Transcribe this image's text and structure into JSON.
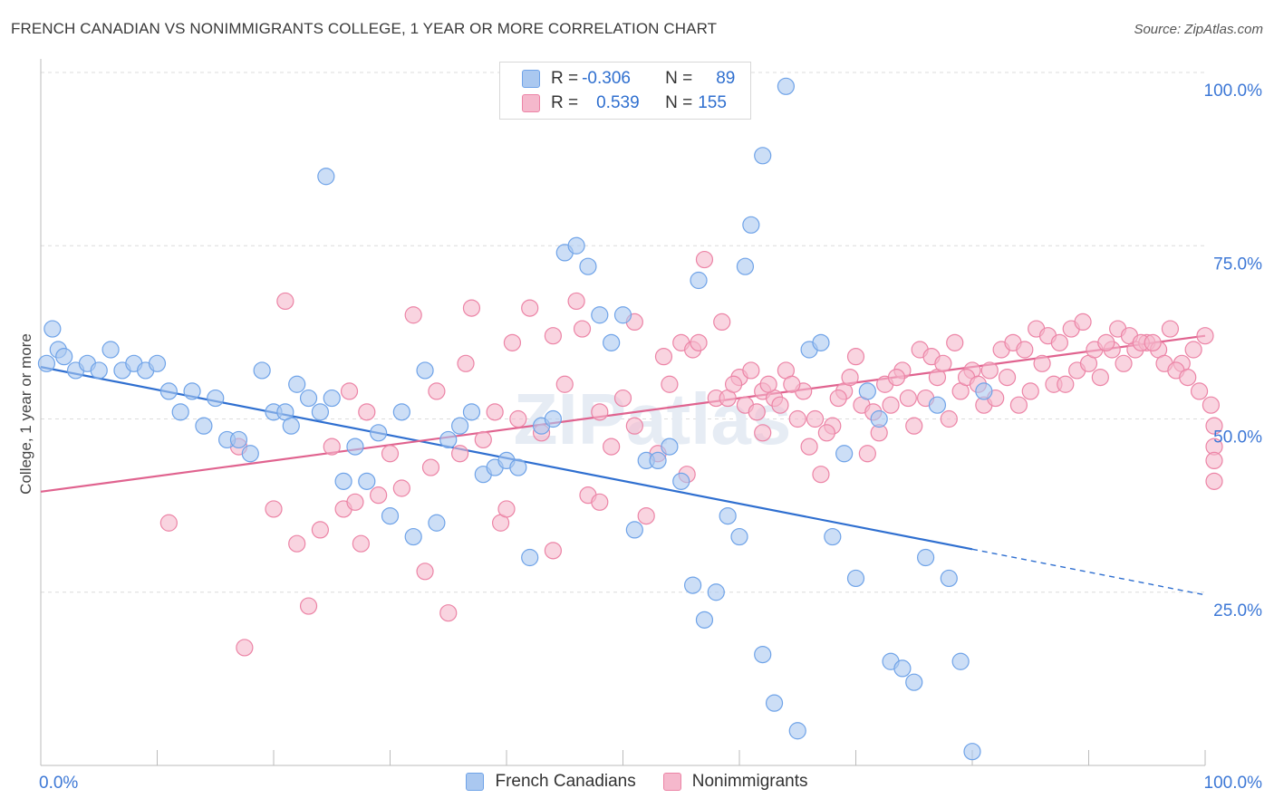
{
  "title": "FRENCH CANADIAN VS NONIMMIGRANTS COLLEGE, 1 YEAR OR MORE CORRELATION CHART",
  "source": "Source: ZipAtlas.com",
  "watermark": "ZIPatlas",
  "legend": {
    "rows": [
      {
        "r_label": "R =",
        "r_value": "-0.306",
        "n_label": "N =",
        "n_value": "89",
        "color": "#aac8f0"
      },
      {
        "r_label": "R =",
        "r_value": "0.539",
        "n_label": "N =",
        "n_value": "155",
        "color": "#f5b8cc"
      }
    ]
  },
  "bottom_legend": [
    {
      "label": "French Canadians",
      "color": "#aac8f0"
    },
    {
      "label": "Nonimmigrants",
      "color": "#f5b8cc"
    }
  ],
  "chart_data": {
    "type": "scatter",
    "title": "FRENCH CANADIAN VS NONIMMIGRANTS COLLEGE, 1 YEAR OR MORE CORRELATION CHART",
    "xlabel": "",
    "ylabel": "College, 1 year or more",
    "xlim": [
      0,
      100
    ],
    "ylim": [
      0,
      100
    ],
    "x_tick_labels": [
      "0.0%",
      "100.0%"
    ],
    "y_tick_labels": [
      "25.0%",
      "50.0%",
      "75.0%",
      "100.0%"
    ],
    "y_ticks": [
      25,
      50,
      75,
      100
    ],
    "grid": true,
    "legend_position": "top-center",
    "series": [
      {
        "name": "French Canadians",
        "color": "#6fa3e8",
        "fill": "#aac8f0",
        "trend": {
          "x0": 0,
          "y0": 57.5,
          "x1": 80,
          "y1": 31.2,
          "dashed_to_x": 100,
          "dashed_to_y": 24.6,
          "color": "#2f6fd0"
        },
        "points": [
          [
            1,
            63
          ],
          [
            0.5,
            58
          ],
          [
            1.5,
            60
          ],
          [
            2,
            59
          ],
          [
            3,
            57
          ],
          [
            4,
            58
          ],
          [
            5,
            57
          ],
          [
            6,
            60
          ],
          [
            7,
            57
          ],
          [
            8,
            58
          ],
          [
            9,
            57
          ],
          [
            10,
            58
          ],
          [
            11,
            54
          ],
          [
            12,
            51
          ],
          [
            13,
            54
          ],
          [
            14,
            49
          ],
          [
            15,
            53
          ],
          [
            16,
            47
          ],
          [
            17,
            47
          ],
          [
            18,
            45
          ],
          [
            19,
            57
          ],
          [
            20,
            51
          ],
          [
            21,
            51
          ],
          [
            21.5,
            49
          ],
          [
            22,
            55
          ],
          [
            23,
            53
          ],
          [
            24,
            51
          ],
          [
            25,
            53
          ],
          [
            26,
            41
          ],
          [
            27,
            46
          ],
          [
            28,
            41
          ],
          [
            29,
            48
          ],
          [
            30,
            36
          ],
          [
            31,
            51
          ],
          [
            32,
            33
          ],
          [
            33,
            57
          ],
          [
            34,
            35
          ],
          [
            35,
            47
          ],
          [
            36,
            49
          ],
          [
            37,
            51
          ],
          [
            38,
            42
          ],
          [
            39,
            43
          ],
          [
            40,
            44
          ],
          [
            41,
            43
          ],
          [
            42,
            30
          ],
          [
            43,
            49
          ],
          [
            44,
            50
          ],
          [
            45,
            74
          ],
          [
            46,
            75
          ],
          [
            47,
            72
          ],
          [
            48,
            65
          ],
          [
            49,
            61
          ],
          [
            50,
            65
          ],
          [
            51,
            34
          ],
          [
            52,
            44
          ],
          [
            53,
            44
          ],
          [
            54,
            46
          ],
          [
            55,
            41
          ],
          [
            56,
            26
          ],
          [
            56.5,
            70
          ],
          [
            57,
            21
          ],
          [
            58,
            25
          ],
          [
            59,
            36
          ],
          [
            60,
            33
          ],
          [
            60.5,
            72
          ],
          [
            61,
            78
          ],
          [
            62,
            16
          ],
          [
            63,
            9
          ],
          [
            64,
            98
          ],
          [
            65,
            5
          ],
          [
            66,
            60
          ],
          [
            67,
            61
          ],
          [
            68,
            33
          ],
          [
            69,
            45
          ],
          [
            70,
            27
          ],
          [
            71,
            54
          ],
          [
            72,
            50
          ],
          [
            73,
            15
          ],
          [
            74,
            14
          ],
          [
            75,
            12
          ],
          [
            76,
            30
          ],
          [
            77,
            52
          ],
          [
            78,
            27
          ],
          [
            79,
            15
          ],
          [
            80,
            2
          ],
          [
            81,
            54
          ],
          [
            24.5,
            85
          ],
          [
            62,
            88
          ]
        ]
      },
      {
        "name": "Nonimmigrants",
        "color": "#ec84a6",
        "fill": "#f5b8cc",
        "trend": {
          "x0": 0,
          "y0": 39.5,
          "x1": 100,
          "y1": 62,
          "color": "#e0638f"
        },
        "points": [
          [
            11,
            35
          ],
          [
            17,
            46
          ],
          [
            17.5,
            17
          ],
          [
            20,
            37
          ],
          [
            21,
            67
          ],
          [
            22,
            32
          ],
          [
            23,
            23
          ],
          [
            24,
            34
          ],
          [
            25,
            46
          ],
          [
            26,
            37
          ],
          [
            27,
            38
          ],
          [
            27.5,
            32
          ],
          [
            28,
            51
          ],
          [
            29,
            39
          ],
          [
            30,
            45
          ],
          [
            31,
            40
          ],
          [
            32,
            65
          ],
          [
            33,
            28
          ],
          [
            34,
            54
          ],
          [
            35,
            22
          ],
          [
            36,
            45
          ],
          [
            37,
            66
          ],
          [
            38,
            47
          ],
          [
            39,
            51
          ],
          [
            39.5,
            35
          ],
          [
            40,
            37
          ],
          [
            41,
            50
          ],
          [
            42,
            66
          ],
          [
            43,
            48
          ],
          [
            44,
            62
          ],
          [
            45,
            55
          ],
          [
            46,
            67
          ],
          [
            47,
            39
          ],
          [
            48,
            51
          ],
          [
            49,
            46
          ],
          [
            50,
            53
          ],
          [
            51,
            64
          ],
          [
            52,
            36
          ],
          [
            53,
            45
          ],
          [
            54,
            55
          ],
          [
            55,
            61
          ],
          [
            55.5,
            42
          ],
          [
            56,
            60
          ],
          [
            57,
            73
          ],
          [
            58,
            53
          ],
          [
            58.5,
            64
          ],
          [
            59,
            53
          ],
          [
            60,
            56
          ],
          [
            61,
            57
          ],
          [
            62,
            54
          ],
          [
            63,
            53
          ],
          [
            64,
            57
          ],
          [
            65,
            50
          ],
          [
            66,
            46
          ],
          [
            67,
            42
          ],
          [
            68,
            49
          ],
          [
            69,
            54
          ],
          [
            70,
            59
          ],
          [
            71,
            45
          ],
          [
            72,
            48
          ],
          [
            73,
            52
          ],
          [
            74,
            57
          ],
          [
            75,
            49
          ],
          [
            76,
            53
          ],
          [
            77,
            56
          ],
          [
            78,
            50
          ],
          [
            79,
            54
          ],
          [
            80,
            57
          ],
          [
            81,
            52
          ],
          [
            82,
            53
          ],
          [
            83,
            56
          ],
          [
            84,
            52
          ],
          [
            85,
            54
          ],
          [
            86,
            58
          ],
          [
            87,
            55
          ],
          [
            88,
            55
          ],
          [
            89,
            57
          ],
          [
            90,
            58
          ],
          [
            91,
            56
          ],
          [
            92,
            60
          ],
          [
            93,
            58
          ],
          [
            94,
            60
          ],
          [
            95,
            61
          ],
          [
            96,
            60
          ],
          [
            97,
            63
          ],
          [
            98,
            58
          ],
          [
            99,
            60
          ],
          [
            100,
            62
          ],
          [
            82.5,
            60
          ],
          [
            83.5,
            61
          ],
          [
            84.5,
            60
          ],
          [
            85.5,
            63
          ],
          [
            86.5,
            62
          ],
          [
            87.5,
            61
          ],
          [
            88.5,
            63
          ],
          [
            89.5,
            64
          ],
          [
            90.5,
            60
          ],
          [
            91.5,
            61
          ],
          [
            92.5,
            63
          ],
          [
            93.5,
            62
          ],
          [
            94.5,
            61
          ],
          [
            95.5,
            61
          ],
          [
            96.5,
            58
          ],
          [
            97.5,
            57
          ],
          [
            98.5,
            56
          ],
          [
            99.5,
            54
          ],
          [
            100.5,
            52
          ],
          [
            101,
            49
          ],
          [
            101.5,
            46
          ],
          [
            102,
            44
          ],
          [
            102.5,
            41
          ],
          [
            75.5,
            60
          ],
          [
            76.5,
            59
          ],
          [
            77.5,
            58
          ],
          [
            78.5,
            61
          ],
          [
            79.5,
            56
          ],
          [
            80.5,
            55
          ],
          [
            81.5,
            57
          ],
          [
            70.5,
            52
          ],
          [
            71.5,
            51
          ],
          [
            72.5,
            55
          ],
          [
            73.5,
            56
          ],
          [
            74.5,
            53
          ],
          [
            65.5,
            54
          ],
          [
            66.5,
            50
          ],
          [
            67.5,
            48
          ],
          [
            68.5,
            53
          ],
          [
            69.5,
            56
          ],
          [
            60.5,
            52
          ],
          [
            61.5,
            51
          ],
          [
            62.5,
            55
          ],
          [
            63.5,
            52
          ],
          [
            64.5,
            55
          ],
          [
            36.5,
            58
          ],
          [
            40.5,
            61
          ],
          [
            46.5,
            63
          ],
          [
            53.5,
            59
          ],
          [
            56.5,
            61
          ],
          [
            59.5,
            55
          ],
          [
            62,
            48
          ],
          [
            51,
            49
          ],
          [
            48,
            38
          ],
          [
            44,
            31
          ],
          [
            33.5,
            43
          ],
          [
            26.5,
            54
          ]
        ]
      }
    ]
  }
}
